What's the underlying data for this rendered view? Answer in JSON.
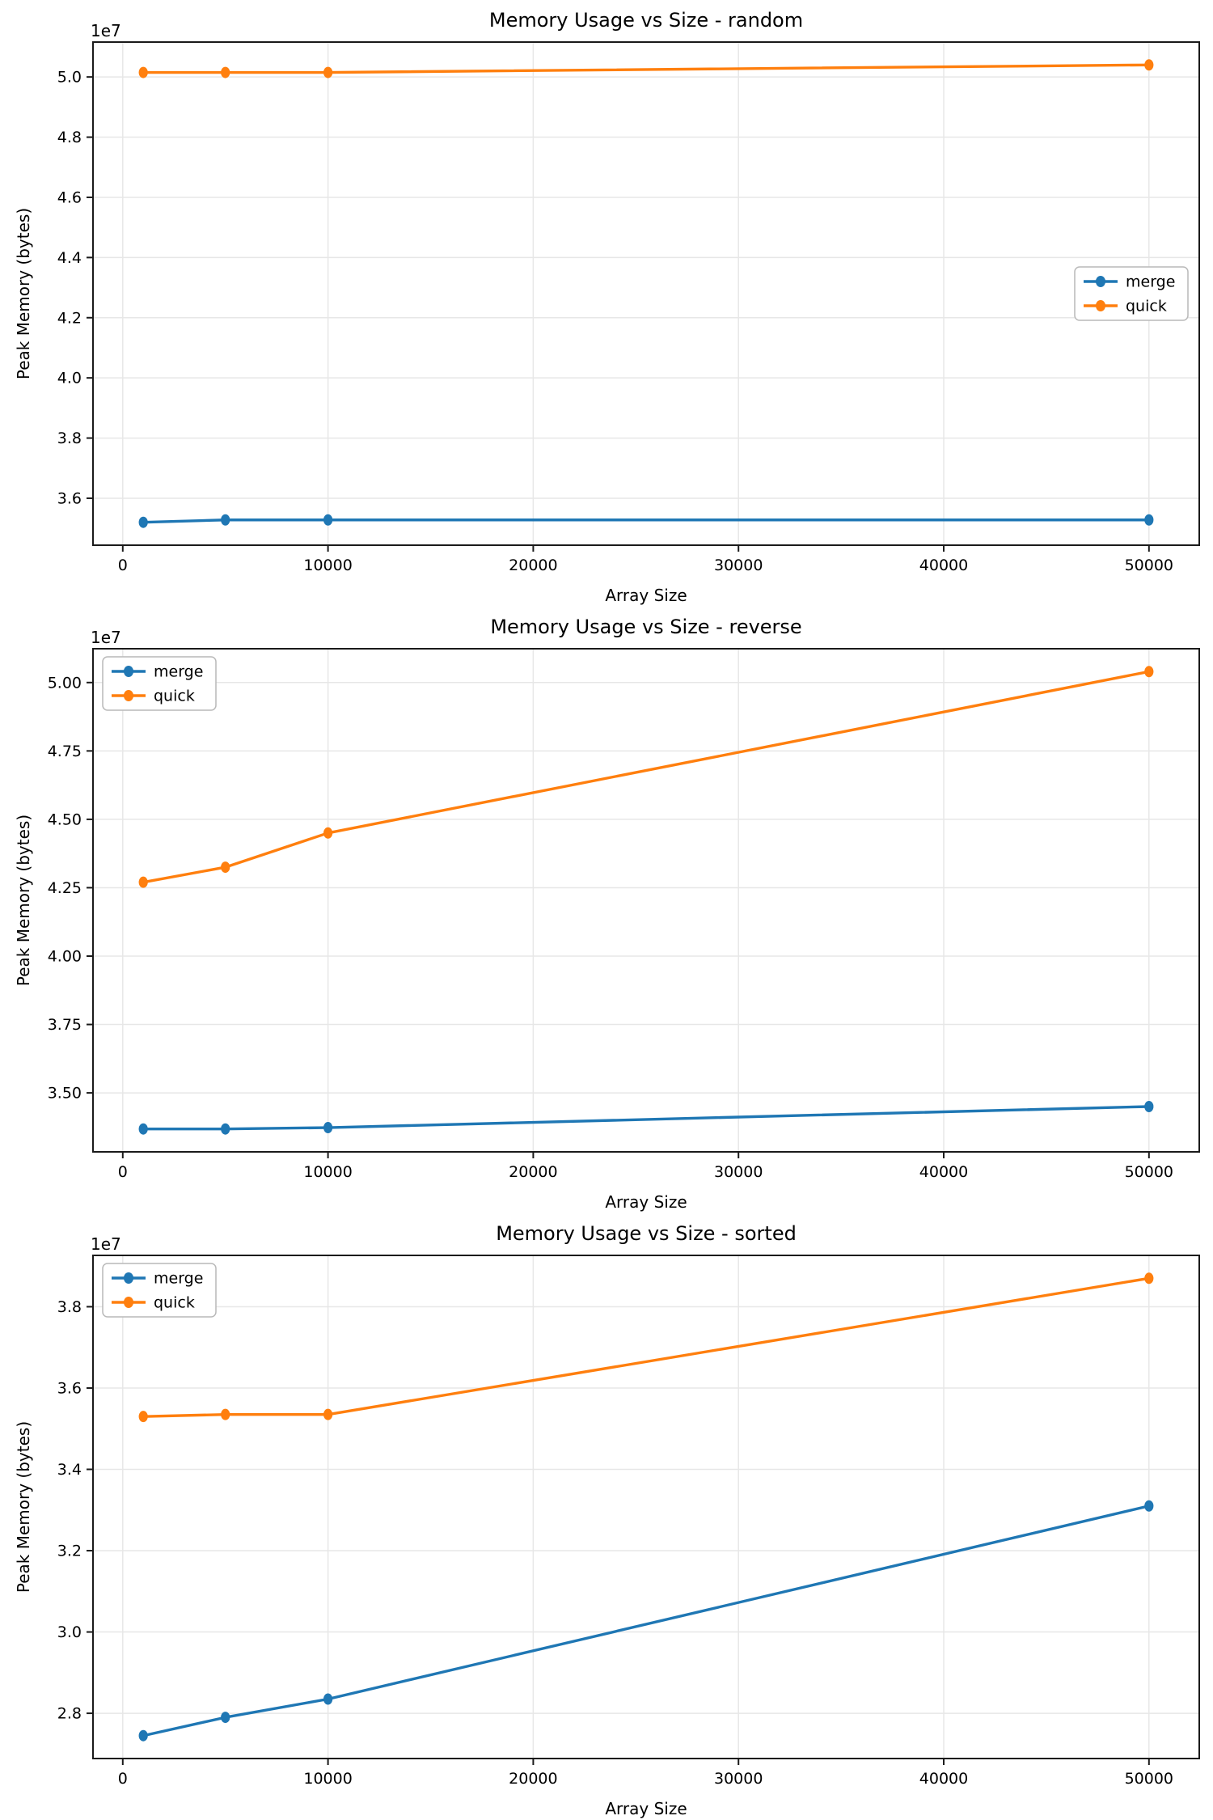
{
  "figure": {
    "background": "#ffffff"
  },
  "colors": {
    "merge": "#1f77b4",
    "quick": "#ff7f0e",
    "grid": "#e7e7e7",
    "spine": "#1a1a1a",
    "tick_text": "#000000",
    "legend_border": "#b9b9b9",
    "legend_bg": "#ffffff"
  },
  "chart_data": [
    {
      "type": "line",
      "title": "Memory Usage vs Size - random",
      "xlabel": "Array Size",
      "ylabel": "Peak Memory (bytes)",
      "offset_text": "1e7",
      "grid": true,
      "x": [
        1000,
        5000,
        10000,
        50000
      ],
      "series": [
        {
          "name": "merge",
          "color_key": "merge",
          "values": [
            35200000,
            35280000,
            35280000,
            35280000
          ]
        },
        {
          "name": "quick",
          "color_key": "quick",
          "values": [
            50150000,
            50150000,
            50150000,
            50400000
          ]
        }
      ],
      "xlim": [
        -1450,
        52450
      ],
      "ylim": [
        34440000,
        51160000
      ],
      "xticks": [
        {
          "v": 0,
          "label": "0"
        },
        {
          "v": 10000,
          "label": "10000"
        },
        {
          "v": 20000,
          "label": "20000"
        },
        {
          "v": 30000,
          "label": "30000"
        },
        {
          "v": 40000,
          "label": "40000"
        },
        {
          "v": 50000,
          "label": "50000"
        }
      ],
      "yticks": [
        {
          "v": 36000000,
          "label": "3.6"
        },
        {
          "v": 38000000,
          "label": "3.8"
        },
        {
          "v": 40000000,
          "label": "4.0"
        },
        {
          "v": 42000000,
          "label": "4.2"
        },
        {
          "v": 44000000,
          "label": "4.4"
        },
        {
          "v": 46000000,
          "label": "4.6"
        },
        {
          "v": 48000000,
          "label": "4.8"
        },
        {
          "v": 50000000,
          "label": "5.0"
        }
      ],
      "legend": {
        "position": "center-right",
        "entries": [
          "merge",
          "quick"
        ]
      }
    },
    {
      "type": "line",
      "title": "Memory Usage vs Size - reverse",
      "xlabel": "Array Size",
      "ylabel": "Peak Memory (bytes)",
      "offset_text": "1e7",
      "grid": true,
      "x": [
        1000,
        5000,
        10000,
        50000
      ],
      "series": [
        {
          "name": "merge",
          "color_key": "merge",
          "values": [
            33680000,
            33680000,
            33730000,
            34500000
          ]
        },
        {
          "name": "quick",
          "color_key": "quick",
          "values": [
            42700000,
            43250000,
            44500000,
            50400000
          ]
        }
      ],
      "xlim": [
        -1450,
        52450
      ],
      "ylim": [
        32844000,
        51236000
      ],
      "xticks": [
        {
          "v": 0,
          "label": "0"
        },
        {
          "v": 10000,
          "label": "10000"
        },
        {
          "v": 20000,
          "label": "20000"
        },
        {
          "v": 30000,
          "label": "30000"
        },
        {
          "v": 40000,
          "label": "40000"
        },
        {
          "v": 50000,
          "label": "50000"
        }
      ],
      "yticks": [
        {
          "v": 35000000,
          "label": "3.50"
        },
        {
          "v": 37500000,
          "label": "3.75"
        },
        {
          "v": 40000000,
          "label": "4.00"
        },
        {
          "v": 42500000,
          "label": "4.25"
        },
        {
          "v": 45000000,
          "label": "4.50"
        },
        {
          "v": 47500000,
          "label": "4.75"
        },
        {
          "v": 50000000,
          "label": "5.00"
        }
      ],
      "legend": {
        "position": "top-left",
        "entries": [
          "merge",
          "quick"
        ]
      }
    },
    {
      "type": "line",
      "title": "Memory Usage vs Size - sorted",
      "xlabel": "Array Size",
      "ylabel": "Peak Memory (bytes)",
      "offset_text": "1e7",
      "grid": true,
      "x": [
        1000,
        5000,
        10000,
        50000
      ],
      "series": [
        {
          "name": "merge",
          "color_key": "merge",
          "values": [
            27450000,
            27900000,
            28350000,
            33100000
          ]
        },
        {
          "name": "quick",
          "color_key": "quick",
          "values": [
            35300000,
            35350000,
            35350000,
            38700000
          ]
        }
      ],
      "xlim": [
        -1450,
        52450
      ],
      "ylim": [
        26887500,
        39262500
      ],
      "xticks": [
        {
          "v": 0,
          "label": "0"
        },
        {
          "v": 10000,
          "label": "10000"
        },
        {
          "v": 20000,
          "label": "20000"
        },
        {
          "v": 30000,
          "label": "30000"
        },
        {
          "v": 40000,
          "label": "40000"
        },
        {
          "v": 50000,
          "label": "50000"
        }
      ],
      "yticks": [
        {
          "v": 28000000,
          "label": "2.8"
        },
        {
          "v": 30000000,
          "label": "3.0"
        },
        {
          "v": 32000000,
          "label": "3.2"
        },
        {
          "v": 34000000,
          "label": "3.4"
        },
        {
          "v": 36000000,
          "label": "3.6"
        },
        {
          "v": 38000000,
          "label": "3.8"
        }
      ],
      "legend": {
        "position": "top-left",
        "entries": [
          "merge",
          "quick"
        ]
      }
    }
  ]
}
